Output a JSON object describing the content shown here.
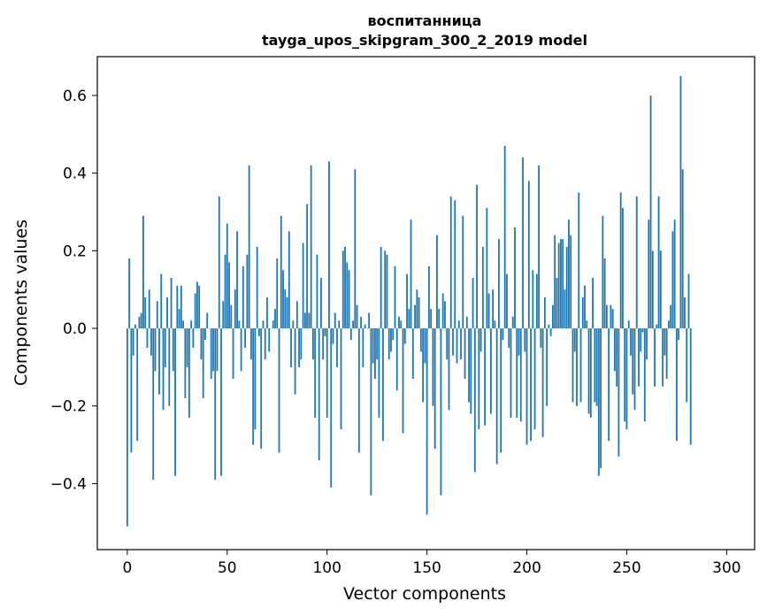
{
  "chart_data": {
    "type": "bar",
    "title": "воспитанница",
    "subtitle": "tayga_upos_skipgram_300_2_2019 model",
    "xlabel": "Vector components",
    "ylabel": "Components values",
    "xlim": [
      -15,
      314
    ],
    "ylim": [
      -0.57,
      0.7
    ],
    "xticks": [
      0,
      50,
      100,
      150,
      200,
      250,
      300
    ],
    "xtick_labels": [
      "0",
      "50",
      "100",
      "150",
      "200",
      "250",
      "300"
    ],
    "yticks": [
      -0.4,
      -0.2,
      0.0,
      0.2,
      0.4,
      0.6
    ],
    "ytick_labels": [
      "−0.4",
      "−0.2",
      "0.0",
      "0.2",
      "0.4",
      "0.6"
    ],
    "grid": false,
    "bar_color": "#1f77b4",
    "series": [
      {
        "values": [
          -0.51,
          0.18,
          -0.32,
          -0.07,
          0.01,
          -0.29,
          0.03,
          0.04,
          0.29,
          0.08,
          -0.05,
          0.1,
          -0.07,
          -0.39,
          -0.11,
          0.07,
          -0.17,
          0.14,
          -0.21,
          -0.1,
          0.08,
          -0.2,
          0.13,
          -0.11,
          -0.38,
          0.11,
          0.05,
          0.11,
          0.02,
          -0.18,
          -0.1,
          -0.23,
          0.02,
          -0.05,
          0.09,
          0.12,
          0.11,
          -0.08,
          -0.18,
          -0.03,
          0.04,
          0.0,
          -0.13,
          -0.11,
          -0.39,
          -0.11,
          0.34,
          -0.38,
          0.07,
          0.19,
          0.27,
          0.17,
          0.06,
          -0.13,
          0.1,
          0.25,
          0.02,
          -0.11,
          0.16,
          -0.05,
          0.19,
          0.42,
          -0.08,
          -0.3,
          -0.26,
          0.21,
          -0.02,
          -0.31,
          0.02,
          -0.08,
          0.08,
          -0.06,
          0.0,
          0.02,
          0.05,
          0.18,
          -0.32,
          0.29,
          0.15,
          0.1,
          0.08,
          0.25,
          -0.1,
          0.02,
          -0.17,
          0.07,
          -0.1,
          -0.08,
          0.22,
          0.04,
          0.32,
          0.04,
          0.42,
          -0.08,
          -0.23,
          0.19,
          -0.34,
          0.13,
          -0.08,
          -0.02,
          -0.23,
          0.43,
          -0.41,
          -0.04,
          0.04,
          -0.1,
          0.02,
          -0.26,
          0.2,
          0.21,
          0.17,
          0.15,
          -0.03,
          0.02,
          0.41,
          0.06,
          -0.32,
          0.03,
          -0.1,
          0.01,
          0.0,
          0.04,
          -0.43,
          -0.09,
          -0.13,
          -0.08,
          -0.23,
          0.21,
          -0.29,
          0.2,
          0.19,
          -0.08,
          -0.06,
          -0.03,
          0.16,
          -0.16,
          0.03,
          0.02,
          -0.27,
          -0.04,
          0.14,
          0.05,
          0.28,
          -0.13,
          0.06,
          0.1,
          0.08,
          -0.06,
          -0.19,
          -0.09,
          -0.48,
          0.16,
          0.05,
          -0.2,
          -0.31,
          0.24,
          0.05,
          -0.43,
          0.09,
          0.07,
          -0.08,
          -0.21,
          0.34,
          -0.07,
          0.33,
          -0.09,
          0.02,
          -0.08,
          0.29,
          -0.13,
          0.03,
          -0.19,
          -0.22,
          0.13,
          -0.37,
          0.37,
          -0.26,
          -0.06,
          0.21,
          -0.25,
          0.31,
          0.09,
          -0.22,
          0.1,
          0.02,
          -0.35,
          0.23,
          -0.32,
          -0.03,
          0.47,
          0.14,
          -0.05,
          -0.23,
          0.03,
          0.26,
          -0.23,
          -0.07,
          -0.24,
          0.44,
          -0.06,
          -0.3,
          0.38,
          -0.29,
          0.15,
          -0.26,
          0.14,
          0.42,
          -0.05,
          -0.28,
          0.08,
          -0.2,
          0.01,
          -0.02,
          0.06,
          0.24,
          0.13,
          0.22,
          0.23,
          0.23,
          0.1,
          0.21,
          0.28,
          0.24,
          -0.19,
          -0.06,
          -0.2,
          0.35,
          -0.19,
          0.08,
          0.11,
          0.02,
          -0.22,
          -0.23,
          0.13,
          -0.19,
          -0.2,
          -0.38,
          -0.36,
          0.29,
          0.18,
          0.06,
          -0.29,
          0.06,
          0.05,
          -0.11,
          -0.15,
          -0.33,
          0.35,
          0.31,
          -0.24,
          -0.26,
          0.02,
          -0.07,
          -0.17,
          -0.21,
          0.34,
          -0.15,
          -0.06,
          -0.01,
          -0.24,
          -0.08,
          0.28,
          0.6,
          0.2,
          -0.15,
          0.01,
          0.34,
          0.2,
          -0.15,
          -0.07,
          -0.13,
          0.02,
          0.06,
          0.25,
          0.28,
          -0.29,
          -0.03,
          0.65,
          0.41,
          0.08,
          -0.19,
          0.14,
          -0.3
        ]
      }
    ]
  }
}
